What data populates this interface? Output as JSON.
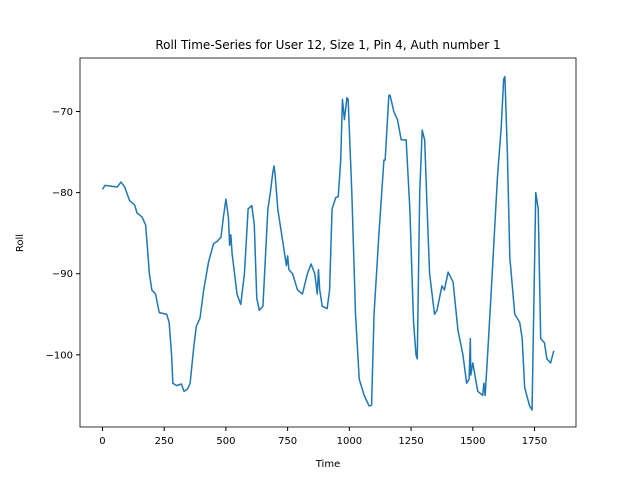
{
  "chart_data": {
    "type": "line",
    "title": "Roll Time-Series for User 12, Size 1, Pin 4, Auth number 1",
    "xlabel": "Time",
    "ylabel": "Roll",
    "xlim": [
      -91,
      1918
    ],
    "ylim": [
      -108.9,
      -63.4
    ],
    "xticks": [
      0,
      250,
      500,
      750,
      1000,
      1250,
      1500,
      1750
    ],
    "yticks": [
      {
        "value": -100,
        "label": "−100"
      },
      {
        "value": -90,
        "label": "−90"
      },
      {
        "value": -80,
        "label": "−80"
      },
      {
        "value": -70,
        "label": "−70"
      }
    ],
    "grid": false,
    "x": [
      0,
      10,
      60,
      75,
      90,
      110,
      130,
      140,
      160,
      175,
      180,
      190,
      200,
      215,
      230,
      260,
      270,
      280,
      285,
      300,
      320,
      330,
      345,
      355,
      370,
      380,
      395,
      410,
      430,
      450,
      465,
      480,
      490,
      500,
      510,
      515,
      520,
      525,
      535,
      545,
      560,
      575,
      590,
      605,
      615,
      625,
      635,
      650,
      660,
      670,
      680,
      690,
      695,
      700,
      710,
      730,
      745,
      750,
      755,
      770,
      790,
      810,
      830,
      845,
      860,
      870,
      875,
      880,
      890,
      910,
      920,
      930,
      945,
      955,
      965,
      972,
      980,
      990,
      995,
      1010,
      1025,
      1040,
      1060,
      1080,
      1090,
      1100,
      1120,
      1140,
      1145,
      1160,
      1165,
      1180,
      1195,
      1210,
      1230,
      1245,
      1260,
      1270,
      1275,
      1285,
      1295,
      1305,
      1315,
      1325,
      1345,
      1355,
      1375,
      1385,
      1400,
      1420,
      1440,
      1460,
      1475,
      1485,
      1490,
      1492,
      1500,
      1520,
      1540,
      1545,
      1550,
      1560,
      1575,
      1600,
      1615,
      1625,
      1630,
      1640,
      1650,
      1670,
      1690,
      1700,
      1710,
      1730,
      1740,
      1755,
      1765,
      1775,
      1790,
      1800,
      1815,
      1828
    ],
    "series": [
      {
        "color": "#1f77b4",
        "values": [
          -79.6,
          -79.1,
          -79.3,
          -78.7,
          -79.3,
          -81,
          -81.5,
          -82.5,
          -83,
          -84,
          -86,
          -90,
          -92,
          -92.5,
          -94.8,
          -95,
          -96,
          -100,
          -103.5,
          -103.8,
          -103.6,
          -104.5,
          -104.2,
          -103.5,
          -99,
          -96.5,
          -95.5,
          -92,
          -88.5,
          -86.3,
          -86,
          -85.5,
          -83,
          -80.8,
          -83,
          -86.5,
          -85.2,
          -87.5,
          -90,
          -92.5,
          -93.8,
          -90,
          -82,
          -81.6,
          -84,
          -93,
          -94.5,
          -94,
          -88,
          -82,
          -80,
          -77.5,
          -76.7,
          -78,
          -82,
          -86,
          -89,
          -87.8,
          -89.5,
          -90,
          -92,
          -92.5,
          -90,
          -88.8,
          -90,
          -92.5,
          -89.5,
          -92,
          -94,
          -94.3,
          -92,
          -82,
          -80.6,
          -80.5,
          -76,
          -68.5,
          -71,
          -68.3,
          -68.5,
          -80,
          -95,
          -103,
          -105,
          -106.3,
          -106.2,
          -95,
          -85,
          -76,
          -76,
          -68,
          -68,
          -70,
          -71,
          -73.5,
          -73.5,
          -82,
          -96,
          -100,
          -100.5,
          -80,
          -72.3,
          -73.5,
          -82,
          -90,
          -95,
          -94.5,
          -91.5,
          -92,
          -89.8,
          -91,
          -97,
          -100,
          -103.5,
          -103,
          -98,
          -102.5,
          -101,
          -104.5,
          -105,
          -103.5,
          -105,
          -100,
          -92,
          -78,
          -72,
          -66,
          -65.7,
          -75,
          -88,
          -95,
          -96,
          -98,
          -104,
          -106.3,
          -106.8,
          -80,
          -82,
          -98,
          -98.5,
          -100.5,
          -101,
          -99.5
        ]
      }
    ]
  }
}
